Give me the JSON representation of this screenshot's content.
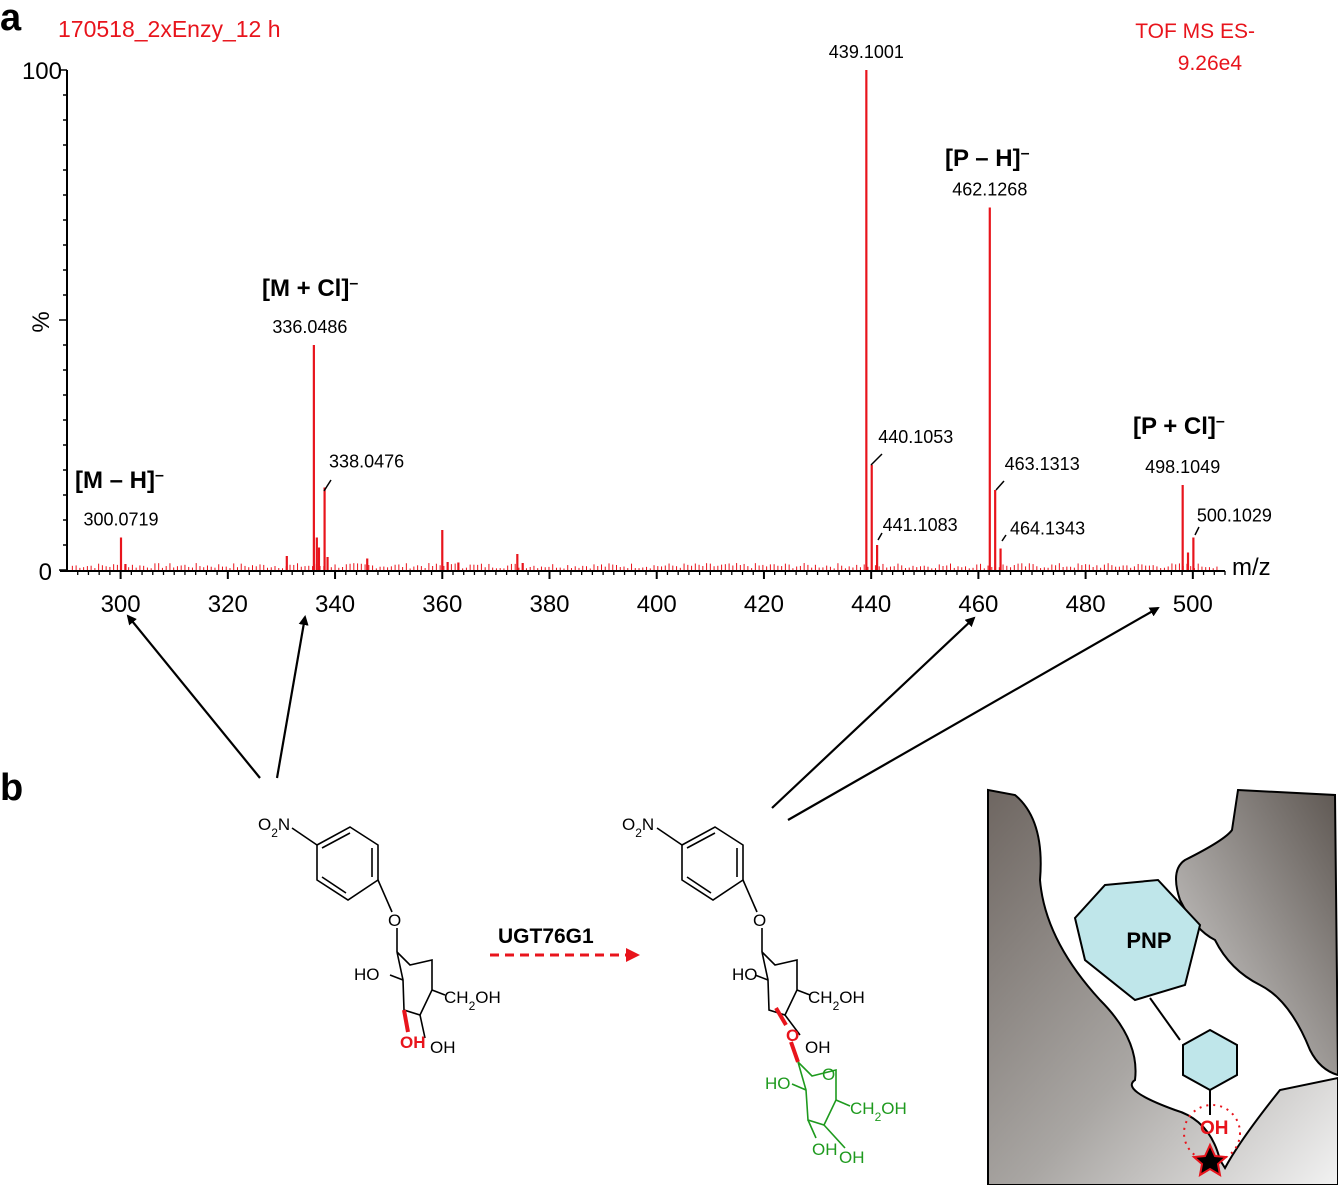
{
  "panel_a_letter": "a",
  "panel_b_letter": "b",
  "header": {
    "sample": "170518_2xEnzy_12 h",
    "mode": "TOF MS ES-",
    "intensity": "9.26e4"
  },
  "chart_data": {
    "type": "bar",
    "xlabel": "m/z",
    "ylabel": "%",
    "xlim": [
      290,
      506
    ],
    "ylim": [
      0,
      100
    ],
    "x_ticks": [
      300,
      320,
      340,
      360,
      380,
      400,
      420,
      440,
      460,
      480,
      500
    ],
    "y_ticks": [
      0,
      100
    ],
    "peaks": [
      {
        "mz": 300.0719,
        "intensity": 6.5
      },
      {
        "mz": 300.9,
        "intensity": 1.2
      },
      {
        "mz": 331.0,
        "intensity": 2.8
      },
      {
        "mz": 336.0486,
        "intensity": 45.0
      },
      {
        "mz": 336.6,
        "intensity": 6.5
      },
      {
        "mz": 337.0,
        "intensity": 4.5
      },
      {
        "mz": 338.0476,
        "intensity": 16.5
      },
      {
        "mz": 338.6,
        "intensity": 2.6
      },
      {
        "mz": 346.0,
        "intensity": 2.3
      },
      {
        "mz": 360.0,
        "intensity": 8.0
      },
      {
        "mz": 361.0,
        "intensity": 1.6
      },
      {
        "mz": 363.0,
        "intensity": 1.5
      },
      {
        "mz": 374.0,
        "intensity": 3.2
      },
      {
        "mz": 375.0,
        "intensity": 1.4
      },
      {
        "mz": 439.1001,
        "intensity": 100
      },
      {
        "mz": 440.1053,
        "intensity": 21.0
      },
      {
        "mz": 441.1083,
        "intensity": 5.0
      },
      {
        "mz": 462.1268,
        "intensity": 72.5
      },
      {
        "mz": 463.1313,
        "intensity": 16.0
      },
      {
        "mz": 464.1343,
        "intensity": 4.3
      },
      {
        "mz": 498.1049,
        "intensity": 17.0
      },
      {
        "mz": 499.1,
        "intensity": 3.5
      },
      {
        "mz": 500.1029,
        "intensity": 6.5
      }
    ],
    "peak_labels": [
      {
        "mz": 300.0719,
        "text": "300.0719"
      },
      {
        "mz": 336.0486,
        "text": "336.0486"
      },
      {
        "mz": 338.0476,
        "text": "338.0476"
      },
      {
        "mz": 439.1001,
        "text": "439.1001"
      },
      {
        "mz": 440.1053,
        "text": "440.1053"
      },
      {
        "mz": 441.1083,
        "text": "441.1083"
      },
      {
        "mz": 462.1268,
        "text": "462.1268"
      },
      {
        "mz": 463.1313,
        "text": "463.1313"
      },
      {
        "mz": 464.1343,
        "text": "464.1343"
      },
      {
        "mz": 498.1049,
        "text": "498.1049"
      },
      {
        "mz": 500.1029,
        "text": "500.1029"
      }
    ],
    "ion_labels": [
      {
        "text": "[M – H]–"
      },
      {
        "text": "[M + Cl]–"
      },
      {
        "text": "[P – H]–"
      },
      {
        "text": "[P + Cl]–"
      }
    ],
    "color": "#e8141c"
  },
  "scheme": {
    "enzyme": "UGT76G1",
    "substrate_no2": "O2N",
    "substrate_labels": {
      "o": "O",
      "ho": "HO",
      "ch2oh": "CH2OH",
      "oh_red": "OH",
      "oh": "OH"
    },
    "product_no2": "O2N",
    "product_labels": {
      "o": "O",
      "ho": "HO",
      "ch2oh": "CH2OH",
      "oh": "OH",
      "o_red": "O"
    },
    "glucose_labels": {
      "o": "O",
      "ho": "HO",
      "ch2oh": "CH2OH",
      "oh1": "OH",
      "oh2": "OH"
    },
    "pocket_label": "PNP",
    "pocket_oh": "OH",
    "colors": {
      "red": "#e8141c",
      "green": "#1e9a1e",
      "cyan": "#bfe6ea"
    }
  }
}
